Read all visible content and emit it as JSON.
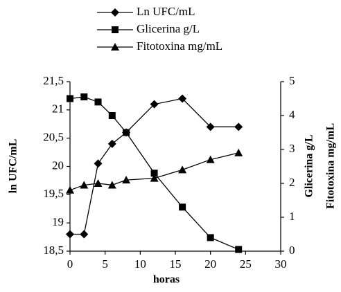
{
  "chart_data": {
    "type": "line",
    "x": [
      0,
      2,
      4,
      6,
      8,
      12,
      16,
      20,
      24
    ],
    "series": [
      {
        "name": "Ln UFC/mL",
        "color": "#000000",
        "marker": "diamond",
        "values": [
          18.8,
          18.8,
          20.05,
          20.4,
          20.6,
          21.1,
          21.2,
          20.7,
          20.7
        ]
      },
      {
        "name": "Glicerina g/L",
        "color": "#000000",
        "marker": "square",
        "axis": "y2",
        "values": [
          4.5,
          4.55,
          4.4,
          4.0,
          3.5,
          2.3,
          1.3,
          0.4,
          0.05
        ]
      },
      {
        "name": "Fitotoxina mg/mL",
        "color": "#000000",
        "marker": "triangle",
        "axis": "y2",
        "values": [
          1.8,
          1.95,
          2.0,
          1.95,
          2.1,
          2.15,
          2.4,
          2.7,
          2.9
        ]
      }
    ],
    "xlabel": "horas",
    "ylabel": "ln UFC/mL",
    "y2labels": [
      "Glicerina g/L",
      "Fitotoxina mg/mL"
    ],
    "xlim": [
      0,
      30
    ],
    "xticks": [
      0,
      5,
      10,
      15,
      20,
      25,
      30
    ],
    "ylim": [
      18.5,
      21.5
    ],
    "yticks": [
      {
        "value": 18.5,
        "label": "18,5"
      },
      19,
      {
        "value": 19.5,
        "label": "19,5"
      },
      20,
      {
        "value": 20.5,
        "label": "20,5"
      },
      21,
      {
        "value": 21.5,
        "label": "21,5"
      }
    ],
    "y2lim": [
      0,
      5
    ],
    "y2ticks": [
      0,
      1,
      2,
      3,
      4,
      5
    ],
    "legend": "top"
  }
}
